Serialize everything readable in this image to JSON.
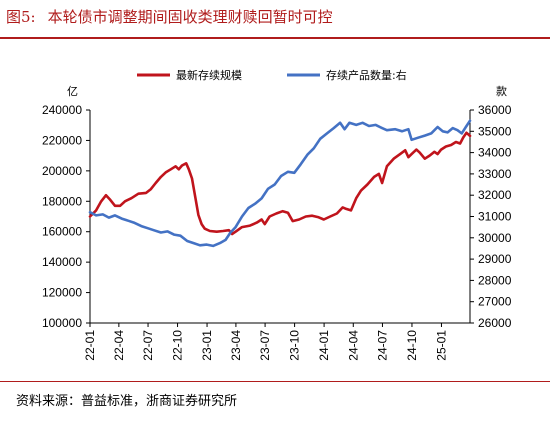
{
  "figure": {
    "number": "图5:",
    "title": "本轮债市调整期间固收类理财赎回暂时可控"
  },
  "source": "资料来源：普益标准，浙商证券研究所",
  "chart_data": {
    "type": "line",
    "y_left_unit": "亿",
    "y_right_unit": "款",
    "y_left_range": [
      100000,
      240000
    ],
    "y_left_ticks": [
      100000,
      120000,
      140000,
      160000,
      180000,
      200000,
      220000,
      240000
    ],
    "y_right_range": [
      26000,
      36000
    ],
    "y_right_ticks": [
      26000,
      27000,
      28000,
      29000,
      30000,
      31000,
      32000,
      33000,
      34000,
      35000,
      36000
    ],
    "x_range": [
      "2022-01-01",
      "2025-03-31"
    ],
    "x_ticks": [
      "22-01",
      "22-04",
      "22-07",
      "22-10",
      "23-01",
      "23-04",
      "23-07",
      "23-10",
      "24-01",
      "24-04",
      "24-07",
      "24-10",
      "25-01"
    ],
    "grid": false,
    "legend_position": "top",
    "series": [
      {
        "name": "最新存续规模",
        "axis": "left",
        "color": "#c0141c",
        "points": [
          [
            "2022-01-01",
            170000
          ],
          [
            "2022-01-20",
            174000
          ],
          [
            "2022-02-05",
            180000
          ],
          [
            "2022-02-20",
            184000
          ],
          [
            "2022-03-05",
            181000
          ],
          [
            "2022-03-20",
            177000
          ],
          [
            "2022-04-05",
            177000
          ],
          [
            "2022-04-20",
            180000
          ],
          [
            "2022-05-10",
            182000
          ],
          [
            "2022-06-01",
            185000
          ],
          [
            "2022-06-25",
            185500
          ],
          [
            "2022-07-10",
            188000
          ],
          [
            "2022-07-25",
            192000
          ],
          [
            "2022-08-10",
            196000
          ],
          [
            "2022-08-25",
            199000
          ],
          [
            "2022-09-10",
            201000
          ],
          [
            "2022-09-25",
            203000
          ],
          [
            "2022-10-05",
            201000
          ],
          [
            "2022-10-15",
            203500
          ],
          [
            "2022-10-28",
            205000
          ],
          [
            "2022-11-05",
            201000
          ],
          [
            "2022-11-15",
            195000
          ],
          [
            "2022-11-25",
            183000
          ],
          [
            "2022-12-05",
            171000
          ],
          [
            "2022-12-15",
            165000
          ],
          [
            "2022-12-25",
            162000
          ],
          [
            "2023-01-10",
            160500
          ],
          [
            "2023-01-31",
            160000
          ],
          [
            "2023-02-20",
            160500
          ],
          [
            "2023-03-10",
            161000
          ],
          [
            "2023-03-20",
            158500
          ],
          [
            "2023-03-31",
            160000
          ],
          [
            "2023-04-20",
            163000
          ],
          [
            "2023-05-15",
            164000
          ],
          [
            "2023-06-05",
            166000
          ],
          [
            "2023-06-20",
            168000
          ],
          [
            "2023-06-30",
            165000
          ],
          [
            "2023-07-15",
            170000
          ],
          [
            "2023-08-05",
            172000
          ],
          [
            "2023-08-25",
            173500
          ],
          [
            "2023-09-10",
            172500
          ],
          [
            "2023-09-25",
            167000
          ],
          [
            "2023-10-15",
            168000
          ],
          [
            "2023-11-05",
            170000
          ],
          [
            "2023-11-25",
            170500
          ],
          [
            "2023-12-15",
            169500
          ],
          [
            "2023-12-31",
            168000
          ],
          [
            "2024-01-20",
            170000
          ],
          [
            "2024-02-10",
            172000
          ],
          [
            "2024-02-28",
            176000
          ],
          [
            "2024-03-10",
            175000
          ],
          [
            "2024-03-25",
            174000
          ],
          [
            "2024-04-10",
            182000
          ],
          [
            "2024-04-25",
            187000
          ],
          [
            "2024-05-15",
            191000
          ],
          [
            "2024-06-05",
            196000
          ],
          [
            "2024-06-20",
            198000
          ],
          [
            "2024-06-30",
            192000
          ],
          [
            "2024-07-15",
            203000
          ],
          [
            "2024-08-05",
            208000
          ],
          [
            "2024-08-25",
            211000
          ],
          [
            "2024-09-10",
            213500
          ],
          [
            "2024-09-20",
            209000
          ],
          [
            "2024-09-30",
            211000
          ],
          [
            "2024-10-15",
            214000
          ],
          [
            "2024-10-25",
            212000
          ],
          [
            "2024-11-10",
            208000
          ],
          [
            "2024-11-25",
            210000
          ],
          [
            "2024-12-10",
            212500
          ],
          [
            "2024-12-20",
            211000
          ],
          [
            "2024-12-31",
            214000
          ],
          [
            "2025-01-15",
            216000
          ],
          [
            "2025-01-31",
            217000
          ],
          [
            "2025-02-15",
            219000
          ],
          [
            "2025-02-28",
            218000
          ],
          [
            "2025-03-10",
            222000
          ],
          [
            "2025-03-20",
            225000
          ],
          [
            "2025-03-31",
            223000
          ]
        ]
      },
      {
        "name": "存续产品数量:右",
        "axis": "right",
        "color": "#4472c4",
        "points": [
          [
            "2022-01-01",
            31200
          ],
          [
            "2022-01-20",
            31050
          ],
          [
            "2022-02-10",
            31100
          ],
          [
            "2022-03-01",
            30950
          ],
          [
            "2022-03-20",
            31050
          ],
          [
            "2022-04-10",
            30900
          ],
          [
            "2022-05-01",
            30800
          ],
          [
            "2022-05-20",
            30700
          ],
          [
            "2022-06-10",
            30550
          ],
          [
            "2022-06-30",
            30450
          ],
          [
            "2022-07-20",
            30350
          ],
          [
            "2022-08-10",
            30250
          ],
          [
            "2022-08-31",
            30300
          ],
          [
            "2022-09-20",
            30150
          ],
          [
            "2022-10-10",
            30100
          ],
          [
            "2022-10-31",
            29850
          ],
          [
            "2022-11-20",
            29750
          ],
          [
            "2022-12-10",
            29650
          ],
          [
            "2022-12-31",
            29680
          ],
          [
            "2023-01-20",
            29620
          ],
          [
            "2023-02-10",
            29750
          ],
          [
            "2023-02-28",
            29900
          ],
          [
            "2023-03-15",
            30250
          ],
          [
            "2023-03-31",
            30500
          ],
          [
            "2023-04-20",
            31000
          ],
          [
            "2023-05-10",
            31400
          ],
          [
            "2023-05-31",
            31600
          ],
          [
            "2023-06-20",
            31850
          ],
          [
            "2023-07-10",
            32300
          ],
          [
            "2023-07-31",
            32500
          ],
          [
            "2023-08-20",
            32900
          ],
          [
            "2023-09-10",
            33100
          ],
          [
            "2023-09-30",
            33050
          ],
          [
            "2023-10-20",
            33450
          ],
          [
            "2023-11-10",
            33900
          ],
          [
            "2023-11-30",
            34200
          ],
          [
            "2023-12-20",
            34650
          ],
          [
            "2024-01-10",
            34900
          ],
          [
            "2024-01-31",
            35150
          ],
          [
            "2024-02-20",
            35400
          ],
          [
            "2024-03-05",
            35100
          ],
          [
            "2024-03-20",
            35400
          ],
          [
            "2024-04-10",
            35300
          ],
          [
            "2024-04-30",
            35400
          ],
          [
            "2024-05-20",
            35250
          ],
          [
            "2024-06-10",
            35300
          ],
          [
            "2024-06-30",
            35150
          ],
          [
            "2024-07-15",
            35050
          ],
          [
            "2024-08-10",
            35100
          ],
          [
            "2024-08-31",
            35000
          ],
          [
            "2024-09-20",
            35100
          ],
          [
            "2024-09-30",
            34600
          ],
          [
            "2024-10-20",
            34700
          ],
          [
            "2024-11-10",
            34800
          ],
          [
            "2024-11-30",
            34900
          ],
          [
            "2024-12-20",
            35200
          ],
          [
            "2025-01-05",
            35000
          ],
          [
            "2025-01-20",
            34950
          ],
          [
            "2025-02-05",
            35150
          ],
          [
            "2025-02-20",
            35050
          ],
          [
            "2025-03-05",
            34900
          ],
          [
            "2025-03-20",
            35250
          ],
          [
            "2025-03-31",
            35500
          ]
        ]
      }
    ]
  }
}
